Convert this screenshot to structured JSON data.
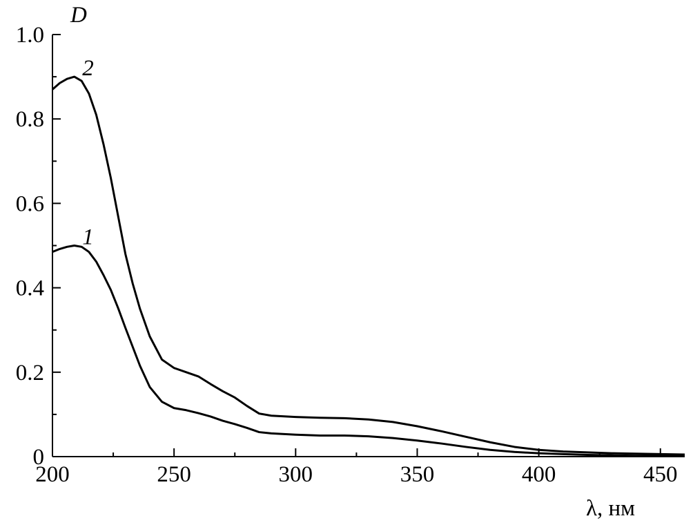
{
  "chart_data": {
    "type": "line",
    "xlabel": "λ, нм",
    "ylabel": "D",
    "xlim": [
      200,
      460
    ],
    "ylim": [
      0,
      1.0
    ],
    "x_ticks": [
      200,
      250,
      300,
      350,
      400,
      450
    ],
    "y_ticks": [
      0,
      0.2,
      0.4,
      0.6,
      0.8,
      1.0
    ],
    "x_tick_labels": [
      "200",
      "250",
      "300",
      "350",
      "400",
      "450"
    ],
    "y_tick_labels": [
      "0",
      "0.2",
      "0.4",
      "0.6",
      "0.8",
      "1.0"
    ],
    "grid": false,
    "series": [
      {
        "name": "1",
        "x": [
          200,
          203,
          206,
          209,
          212,
          215,
          218,
          221,
          224,
          227,
          230,
          233,
          236,
          240,
          245,
          250,
          255,
          260,
          265,
          270,
          275,
          280,
          285,
          290,
          300,
          310,
          320,
          330,
          340,
          350,
          360,
          370,
          380,
          390,
          400,
          410,
          420,
          430,
          440,
          450,
          460
        ],
        "y": [
          0.485,
          0.492,
          0.497,
          0.5,
          0.497,
          0.485,
          0.462,
          0.43,
          0.395,
          0.352,
          0.305,
          0.26,
          0.215,
          0.165,
          0.13,
          0.115,
          0.11,
          0.103,
          0.095,
          0.085,
          0.077,
          0.068,
          0.058,
          0.055,
          0.052,
          0.05,
          0.05,
          0.048,
          0.044,
          0.038,
          0.031,
          0.023,
          0.016,
          0.011,
          0.008,
          0.006,
          0.004,
          0.003,
          0.002,
          0.002,
          0.002
        ]
      },
      {
        "name": "2",
        "x": [
          200,
          203,
          206,
          209,
          212,
          215,
          218,
          221,
          224,
          227,
          230,
          233,
          236,
          240,
          245,
          250,
          255,
          260,
          265,
          270,
          275,
          280,
          285,
          290,
          300,
          310,
          320,
          330,
          340,
          350,
          360,
          370,
          380,
          390,
          400,
          410,
          420,
          430,
          440,
          450,
          460
        ],
        "y": [
          0.87,
          0.885,
          0.895,
          0.9,
          0.89,
          0.86,
          0.81,
          0.74,
          0.66,
          0.57,
          0.48,
          0.41,
          0.35,
          0.285,
          0.23,
          0.21,
          0.2,
          0.19,
          0.172,
          0.155,
          0.14,
          0.12,
          0.102,
          0.097,
          0.094,
          0.092,
          0.091,
          0.088,
          0.082,
          0.072,
          0.06,
          0.047,
          0.034,
          0.023,
          0.016,
          0.012,
          0.01,
          0.008,
          0.007,
          0.006,
          0.005
        ]
      }
    ]
  }
}
